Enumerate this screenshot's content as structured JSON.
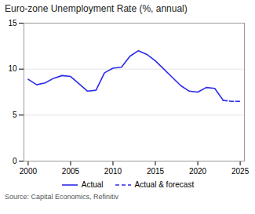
{
  "chart_data": {
    "type": "line",
    "title": "Euro-zone Unemployment Rate (%, annual)",
    "source": "Source: Capital Economics, Refinitiv",
    "series": [
      {
        "name": "Actual",
        "color": "#2B2BE8",
        "line_style": "solid",
        "x": [
          2000,
          2001,
          2002,
          2003,
          2004,
          2005,
          2006,
          2007,
          2008,
          2009,
          2010,
          2011,
          2012,
          2013,
          2014,
          2015,
          2016,
          2017,
          2018,
          2019,
          2020,
          2021,
          2022,
          2023
        ],
        "values": [
          8.9,
          8.3,
          8.5,
          9.0,
          9.3,
          9.2,
          8.4,
          7.6,
          7.7,
          9.6,
          10.1,
          10.2,
          11.4,
          12.0,
          11.6,
          10.9,
          10.0,
          9.1,
          8.2,
          7.6,
          7.5,
          8.0,
          7.9,
          6.6
        ]
      },
      {
        "name": "Actual & forecast",
        "color": "#2B2BE8",
        "line_style": "dashed",
        "x": [
          2023,
          2024,
          2025
        ],
        "values": [
          6.6,
          6.5,
          6.5
        ]
      }
    ],
    "xlim": [
      1999.5,
      2025.5
    ],
    "xticks": [
      2000,
      2005,
      2010,
      2015,
      2020,
      2025
    ],
    "ylim": [
      0,
      15
    ],
    "yticks": [
      0,
      5,
      10,
      15
    ],
    "grid": true,
    "legend": "bottom"
  }
}
